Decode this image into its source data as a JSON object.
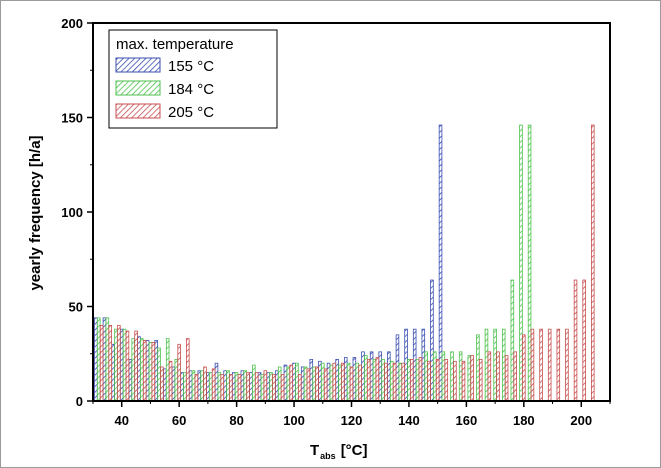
{
  "chart_data": {
    "type": "bar",
    "ylabel": "yearly frequency [h/a]",
    "xlabel_main": "T",
    "xlabel_sub": "abs",
    "xlabel_unit": "[°C]",
    "xlim": [
      30,
      210
    ],
    "ylim": [
      0,
      200
    ],
    "x_ticks": [
      40,
      60,
      80,
      100,
      120,
      140,
      160,
      180,
      200
    ],
    "y_ticks": [
      0,
      50,
      100,
      150,
      200
    ],
    "bin_width": 3,
    "legend": {
      "title": "max. temperature",
      "placement": "top-left"
    },
    "series": [
      {
        "name": "155 °C",
        "color": "#3a4fb0",
        "x": [
          31,
          34,
          37,
          40,
          43,
          46,
          49,
          52,
          55,
          58,
          61,
          64,
          67,
          70,
          73,
          76,
          79,
          82,
          85,
          88,
          91,
          94,
          97,
          100,
          103,
          106,
          109,
          112,
          115,
          118,
          121,
          124,
          127,
          130,
          133,
          136,
          139,
          142,
          145,
          148,
          151
        ],
        "values": [
          44,
          44,
          30,
          38,
          22,
          34,
          32,
          32,
          17,
          18,
          15,
          16,
          16,
          15,
          20,
          16,
          15,
          16,
          15,
          15,
          15,
          16,
          19,
          20,
          18,
          22,
          21,
          20,
          22,
          23,
          23,
          26,
          26,
          26,
          26,
          35,
          38,
          38,
          38,
          64,
          146
        ]
      },
      {
        "name": "184 °C",
        "color": "#4ec24e",
        "x": [
          32,
          35,
          38,
          41,
          44,
          47,
          50,
          53,
          56,
          59,
          62,
          65,
          68,
          71,
          74,
          77,
          80,
          83,
          86,
          89,
          92,
          95,
          98,
          101,
          104,
          107,
          110,
          113,
          116,
          119,
          122,
          125,
          128,
          131,
          134,
          137,
          140,
          143,
          146,
          149,
          152,
          155,
          158,
          161,
          164,
          167,
          170,
          173,
          176,
          179,
          182
        ],
        "values": [
          44,
          44,
          38,
          38,
          33,
          33,
          31,
          28,
          33,
          22,
          15,
          16,
          16,
          15,
          15,
          16,
          15,
          16,
          19,
          14,
          15,
          18,
          18,
          20,
          18,
          18,
          20,
          19,
          19,
          20,
          20,
          24,
          22,
          22,
          21,
          20,
          22,
          22,
          26,
          26,
          26,
          26,
          26,
          24,
          35,
          38,
          38,
          38,
          64,
          146,
          146
        ]
      },
      {
        "name": "205 °C",
        "color": "#c84f4f",
        "x": [
          33,
          36,
          39,
          42,
          45,
          48,
          51,
          54,
          57,
          60,
          63,
          66,
          69,
          72,
          75,
          78,
          81,
          84,
          87,
          90,
          93,
          96,
          99,
          102,
          105,
          108,
          111,
          114,
          117,
          120,
          123,
          126,
          129,
          132,
          135,
          138,
          141,
          144,
          147,
          150,
          153,
          156,
          159,
          162,
          165,
          168,
          171,
          174,
          177,
          180,
          183,
          186,
          189,
          192,
          195,
          198,
          201,
          204
        ],
        "values": [
          40,
          40,
          40,
          37,
          37,
          32,
          31,
          18,
          21,
          30,
          33,
          14,
          18,
          17,
          14,
          14,
          14,
          15,
          15,
          16,
          14,
          14,
          19,
          14,
          17,
          18,
          17,
          20,
          20,
          18,
          19,
          22,
          23,
          20,
          20,
          20,
          22,
          23,
          21,
          22,
          22,
          21,
          21,
          24,
          22,
          26,
          26,
          24,
          26,
          35,
          38,
          38,
          38,
          38,
          38,
          64,
          64,
          146
        ]
      }
    ]
  }
}
